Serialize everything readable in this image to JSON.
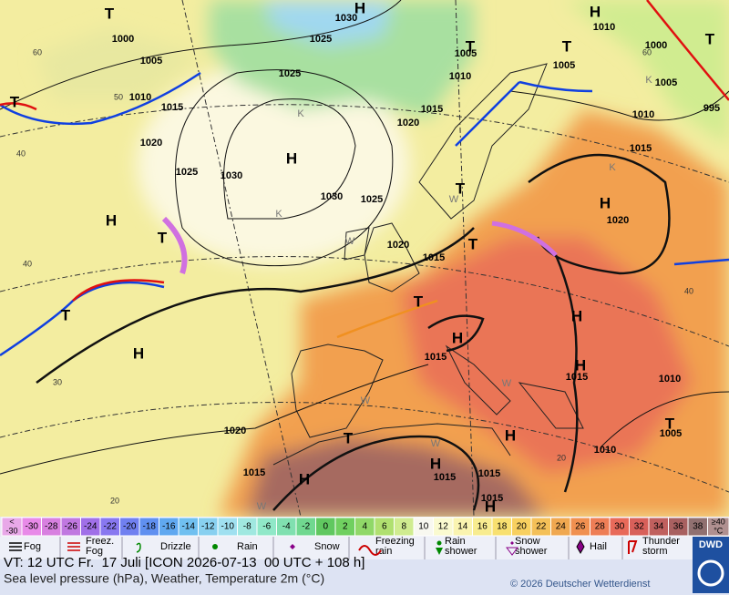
{
  "map": {
    "isobar_labels": [
      "1000",
      "1005",
      "1010",
      "1015",
      "1020",
      "1025",
      "1030",
      "1030",
      "1025",
      "1020",
      "1015",
      "1030",
      "1025",
      "1025",
      "1020",
      "1015",
      "1010",
      "1005",
      "1005",
      "1010",
      "1000",
      "1005",
      "1010",
      "995",
      "1015",
      "1020",
      "1015",
      "1015",
      "1010",
      "1005",
      "1010",
      "1020",
      "1015",
      "1015",
      "1015",
      "1015"
    ],
    "pressure_centers": [
      "T",
      "H",
      "T",
      "T",
      "H",
      "T",
      "H",
      "H",
      "H",
      "T",
      "T",
      "T",
      "H",
      "T",
      "T",
      "H",
      "T",
      "H",
      "H",
      "T",
      "H",
      "T",
      "H",
      "H",
      "H"
    ],
    "temperature_labels": [
      "60",
      "50",
      "40",
      "40",
      "30",
      "20",
      "20",
      "40",
      "60"
    ],
    "markers": [
      "K",
      "K",
      "K",
      "K",
      "W",
      "W",
      "W",
      "W",
      "W",
      "W"
    ]
  },
  "legend": {
    "temperature_scale": {
      "low": {
        "lines": [
          "<",
          "-30"
        ],
        "color": "#e8a8e8"
      },
      "steps": [
        {
          "label": -30,
          "color": "#e88ae8"
        },
        {
          "label": -28,
          "color": "#d880e0"
        },
        {
          "label": -26,
          "color": "#c078e0"
        },
        {
          "label": -24,
          "color": "#a070e8"
        },
        {
          "label": -22,
          "color": "#8878f0"
        },
        {
          "label": -20,
          "color": "#7080f0"
        },
        {
          "label": -18,
          "color": "#6090f0"
        },
        {
          "label": -16,
          "color": "#60a8f0"
        },
        {
          "label": -14,
          "color": "#70c0f0"
        },
        {
          "label": -12,
          "color": "#88d0f0"
        },
        {
          "label": -10,
          "color": "#a0e0f0"
        },
        {
          "label": -8,
          "color": "#a0e8e0"
        },
        {
          "label": -6,
          "color": "#90e8c8"
        },
        {
          "label": -4,
          "color": "#80e0b0"
        },
        {
          "label": -2,
          "color": "#70d890"
        },
        {
          "label": 0,
          "color": "#60c860"
        },
        {
          "label": 2,
          "color": "#70d060"
        },
        {
          "label": 4,
          "color": "#90d868"
        },
        {
          "label": 6,
          "color": "#b0e070"
        },
        {
          "label": 8,
          "color": "#d0ec90"
        },
        {
          "label": 10,
          "color": "#f8f8f0"
        },
        {
          "label": 12,
          "color": "#fafad0"
        },
        {
          "label": 14,
          "color": "#faf4b0"
        },
        {
          "label": 16,
          "color": "#f8ec90"
        },
        {
          "label": 18,
          "color": "#f8e070"
        },
        {
          "label": 20,
          "color": "#f8d060"
        },
        {
          "label": 22,
          "color": "#f4c058"
        },
        {
          "label": 24,
          "color": "#f0a850"
        },
        {
          "label": 26,
          "color": "#f09050"
        },
        {
          "label": 28,
          "color": "#ee7e56"
        },
        {
          "label": 30,
          "color": "#e86a5a"
        },
        {
          "label": 32,
          "color": "#d8605a"
        },
        {
          "label": 34,
          "color": "#c0605e"
        },
        {
          "label": 36,
          "color": "#a86060"
        },
        {
          "label": 38,
          "color": "#907070"
        }
      ],
      "high": {
        "lines": [
          "≥40",
          "°C"
        ],
        "color": "#b09090"
      }
    },
    "weather": [
      {
        "lines": [
          "Fog"
        ]
      },
      {
        "lines": [
          "Freez.",
          "Fog"
        ]
      },
      {
        "lines": [
          "Drizzle"
        ]
      },
      {
        "lines": [
          "Rain"
        ]
      },
      {
        "lines": [
          "Snow"
        ]
      },
      {
        "lines": [
          "Freezing",
          "rain"
        ]
      },
      {
        "lines": [
          "Rain",
          "shower"
        ]
      },
      {
        "lines": [
          "Snow",
          "shower"
        ]
      },
      {
        "lines": [
          "Hail"
        ]
      },
      {
        "lines": [
          "Thunder",
          "storm"
        ]
      }
    ]
  },
  "footer": {
    "valid_time": "VT: 12 UTC Fr.  17 Juli [ICON 2026-07-13  00 UTC + 108 h]",
    "description": "Sea level pressure (hPa), Weather, Temperature 2m (°C)",
    "copyright": "© 2026 Deutscher Wetterdienst",
    "logo": "DWD"
  }
}
